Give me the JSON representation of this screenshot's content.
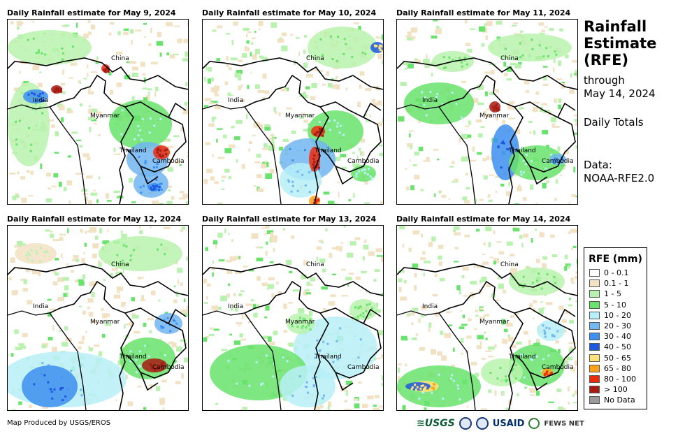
{
  "panels": [
    {
      "title": "Daily Rainfall estimate for May 9, 2024"
    },
    {
      "title": "Daily Rainfall estimate for May 10, 2024"
    },
    {
      "title": "Daily Rainfall estimate for May 11, 2024"
    },
    {
      "title": "Daily Rainfall estimate for May 12, 2024"
    },
    {
      "title": "Daily Rainfall estimate for May 13, 2024"
    },
    {
      "title": "Daily Rainfall estimate for May 14, 2024"
    }
  ],
  "map_labels": {
    "china": "China",
    "india": "India",
    "myanmar": "Myanmar",
    "thailand": "Thailand",
    "cambodia": "Cambodia"
  },
  "side": {
    "title": "Rainfall\nEstimate\n(RFE)",
    "through": "through",
    "date": "May 14, 2024",
    "totals": "Daily Totals",
    "data_label": "Data:",
    "data_source": "NOAA-RFE2.0"
  },
  "legend": {
    "title": "RFE (mm)",
    "items": [
      {
        "label": "0 - 0.1",
        "color": "#ffffff"
      },
      {
        "label": "0.1 - 1",
        "color": "#f2e2c4"
      },
      {
        "label": "1 - 5",
        "color": "#b9f2ae"
      },
      {
        "label": "5 - 10",
        "color": "#69e36b"
      },
      {
        "label": "10 - 20",
        "color": "#b7f0f7"
      },
      {
        "label": "20 - 30",
        "color": "#72b6f2"
      },
      {
        "label": "30 - 40",
        "color": "#3d8ff0"
      },
      {
        "label": "40 - 50",
        "color": "#1f58e0"
      },
      {
        "label": "50 - 65",
        "color": "#ffe27a"
      },
      {
        "label": "65 - 80",
        "color": "#ffa21a"
      },
      {
        "label": "80 - 100",
        "color": "#ec2d0c"
      },
      {
        "label": "> 100",
        "color": "#a61b12"
      },
      {
        "label": "No Data",
        "color": "#9a9a9a"
      }
    ]
  },
  "footer": {
    "credit": "Map Produced by USGS/EROS",
    "logos": {
      "usgs": "≊USGS",
      "usaid": "USAID",
      "fews": "FEWS NET"
    }
  }
}
